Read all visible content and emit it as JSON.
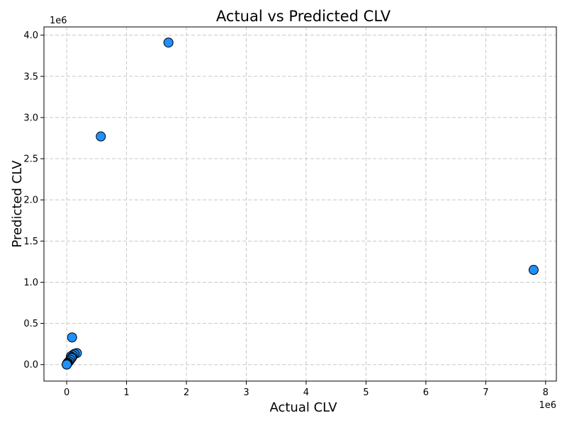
{
  "chart_data": {
    "type": "scatter",
    "title": "Actual vs Predicted CLV",
    "xlabel": "Actual CLV",
    "ylabel": "Predicted CLV",
    "x_offset_label": "1e6",
    "y_offset_label": "1e6",
    "xlim": [
      -380000,
      8180000
    ],
    "ylim": [
      -200000,
      4100000
    ],
    "x_ticks": [
      0,
      1000000,
      2000000,
      3000000,
      4000000,
      5000000,
      6000000,
      7000000,
      8000000
    ],
    "x_tick_labels": [
      "0",
      "1",
      "2",
      "3",
      "4",
      "5",
      "6",
      "7",
      "8"
    ],
    "y_ticks": [
      0,
      500000,
      1000000,
      1500000,
      2000000,
      2500000,
      3000000,
      3500000,
      4000000
    ],
    "y_tick_labels": [
      "0.0",
      "0.5",
      "1.0",
      "1.5",
      "2.0",
      "2.5",
      "3.0",
      "3.5",
      "4.0"
    ],
    "grid": true,
    "marker_color": "#1e90ff",
    "marker_edge": "#000000",
    "points": [
      {
        "x": 7800000,
        "y": 1150000
      },
      {
        "x": 1700000,
        "y": 3910000
      },
      {
        "x": 570000,
        "y": 2770000
      },
      {
        "x": 90000,
        "y": 330000
      },
      {
        "x": 170000,
        "y": 140000
      },
      {
        "x": 130000,
        "y": 130000
      },
      {
        "x": 100000,
        "y": 115000
      },
      {
        "x": 70000,
        "y": 100000
      },
      {
        "x": 90000,
        "y": 90000
      },
      {
        "x": 80000,
        "y": 80000
      },
      {
        "x": 60000,
        "y": 60000
      },
      {
        "x": 40000,
        "y": 40000
      },
      {
        "x": 20000,
        "y": 25000
      },
      {
        "x": 10000,
        "y": 15000
      },
      {
        "x": 5000,
        "y": 8000
      },
      {
        "x": 2000,
        "y": 3000
      },
      {
        "x": 1000,
        "y": 1000
      },
      {
        "x": 500,
        "y": 500
      }
    ]
  }
}
